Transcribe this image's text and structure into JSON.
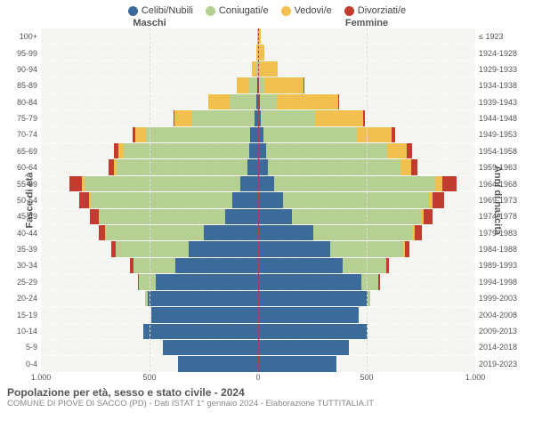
{
  "legend": [
    {
      "label": "Celibi/Nubili",
      "color": "#3d6b99"
    },
    {
      "label": "Coniugati/e",
      "color": "#b6d094"
    },
    {
      "label": "Vedovi/e",
      "color": "#f2c04e"
    },
    {
      "label": "Divorziati/e",
      "color": "#c23b2f"
    }
  ],
  "header_male": "Maschi",
  "header_female": "Femmine",
  "yaxis_left_title": "Fasce di età",
  "yaxis_right_title": "Anni di nascita",
  "xaxis": {
    "max": 1000,
    "ticks": [
      1000,
      500,
      0,
      500,
      1000
    ]
  },
  "age_bands": [
    "100+",
    "95-99",
    "90-94",
    "85-89",
    "80-84",
    "75-79",
    "70-74",
    "65-69",
    "60-64",
    "55-59",
    "50-54",
    "45-49",
    "40-44",
    "35-39",
    "30-34",
    "25-29",
    "20-24",
    "15-19",
    "10-14",
    "5-9",
    "0-4"
  ],
  "birth_years": [
    "≤ 1923",
    "1924-1928",
    "1929-1933",
    "1934-1938",
    "1939-1943",
    "1944-1948",
    "1949-1953",
    "1954-1958",
    "1959-1963",
    "1964-1968",
    "1969-1973",
    "1974-1978",
    "1979-1983",
    "1984-1988",
    "1989-1993",
    "1994-1998",
    "1999-2003",
    "2004-2008",
    "2009-2013",
    "2014-2018",
    "2019-2023"
  ],
  "male": [
    [
      0,
      0,
      3,
      0
    ],
    [
      0,
      2,
      5,
      0
    ],
    [
      2,
      5,
      20,
      0
    ],
    [
      5,
      35,
      60,
      0
    ],
    [
      10,
      120,
      100,
      0
    ],
    [
      15,
      290,
      80,
      5
    ],
    [
      35,
      480,
      50,
      15
    ],
    [
      40,
      580,
      25,
      20
    ],
    [
      50,
      600,
      15,
      25
    ],
    [
      80,
      720,
      10,
      60
    ],
    [
      120,
      650,
      8,
      45
    ],
    [
      150,
      580,
      5,
      40
    ],
    [
      250,
      450,
      3,
      30
    ],
    [
      320,
      335,
      2,
      20
    ],
    [
      380,
      195,
      0,
      15
    ],
    [
      470,
      80,
      0,
      5
    ],
    [
      510,
      10,
      0,
      0
    ],
    [
      490,
      0,
      0,
      0
    ],
    [
      530,
      0,
      0,
      0
    ],
    [
      440,
      0,
      0,
      0
    ],
    [
      370,
      0,
      0,
      0
    ]
  ],
  "female": [
    [
      0,
      2,
      12,
      0
    ],
    [
      0,
      3,
      25,
      0
    ],
    [
      2,
      8,
      80,
      0
    ],
    [
      5,
      25,
      180,
      2
    ],
    [
      8,
      80,
      280,
      5
    ],
    [
      12,
      250,
      220,
      8
    ],
    [
      25,
      430,
      160,
      15
    ],
    [
      35,
      560,
      90,
      25
    ],
    [
      45,
      610,
      50,
      30
    ],
    [
      75,
      740,
      35,
      65
    ],
    [
      115,
      670,
      20,
      50
    ],
    [
      155,
      595,
      12,
      40
    ],
    [
      255,
      460,
      8,
      30
    ],
    [
      330,
      340,
      5,
      20
    ],
    [
      390,
      200,
      2,
      12
    ],
    [
      475,
      80,
      0,
      5
    ],
    [
      505,
      10,
      0,
      0
    ],
    [
      465,
      0,
      0,
      0
    ],
    [
      505,
      0,
      0,
      0
    ],
    [
      420,
      0,
      0,
      0
    ],
    [
      360,
      0,
      0,
      0
    ]
  ],
  "colors": {
    "bg": "#f5f5f2"
  },
  "title": "Popolazione per età, sesso e stato civile - 2024",
  "subtitle": "COMUNE DI PIOVE DI SACCO (PD) - Dati ISTAT 1° gennaio 2024 - Elaborazione TUTTITALIA.IT"
}
